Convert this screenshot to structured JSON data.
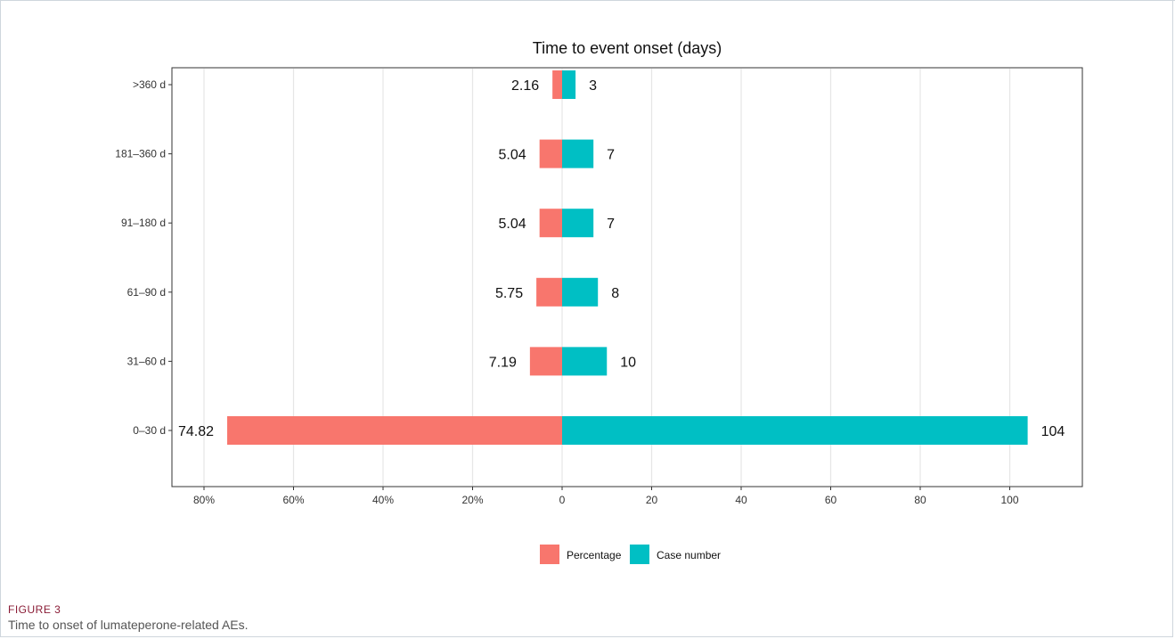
{
  "figure": {
    "label": "FIGURE 3",
    "caption": "Time to onset of lumateperone-related AEs."
  },
  "chart_data": {
    "type": "bar",
    "orientation": "horizontal-diverging",
    "title": "Time to event onset (days)",
    "categories": [
      "0–30 d",
      "31–60 d",
      "61–90 d",
      "91–180 d",
      "181–360 d",
      ">360 d"
    ],
    "series": [
      {
        "name": "Percentage",
        "color": "#F8766D",
        "direction": "left",
        "values": [
          74.82,
          7.19,
          5.75,
          5.04,
          5.04,
          2.16
        ],
        "labels": [
          "74.82",
          "7.19",
          "5.75",
          "5.04",
          "5.04",
          "2.16"
        ]
      },
      {
        "name": "Case number",
        "color": "#00BFC4",
        "direction": "right",
        "values": [
          104,
          10,
          8,
          7,
          7,
          3
        ],
        "labels": [
          "104",
          "10",
          "8",
          "7",
          "7",
          "3"
        ]
      }
    ],
    "xlim": [
      -80,
      100
    ],
    "xticks": [
      -80,
      -60,
      -40,
      -20,
      0,
      20,
      40,
      60,
      80,
      100
    ],
    "xtick_labels": [
      "80%",
      "60%",
      "40%",
      "20%",
      "0",
      "20",
      "40",
      "60",
      "80",
      "100"
    ],
    "grid": true,
    "legend_position": "bottom"
  }
}
